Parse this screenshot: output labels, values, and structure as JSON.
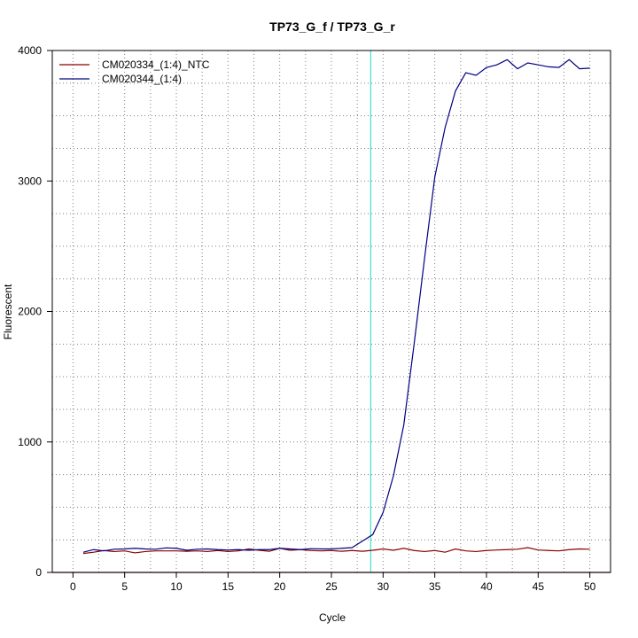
{
  "chart_data": {
    "type": "line",
    "title": "TP73_G_f / TP73_G_r",
    "xlabel": "Cycle",
    "ylabel": "Fluorescent",
    "xlim": [
      -2,
      52
    ],
    "ylim": [
      0,
      4000
    ],
    "x_ticks": [
      0,
      5,
      10,
      15,
      20,
      25,
      30,
      35,
      40,
      45,
      50
    ],
    "y_ticks": [
      0,
      1000,
      2000,
      3000,
      4000
    ],
    "grid": true,
    "legend_position": "top-left",
    "threshold_cycle": 28.8,
    "threshold_color": "#40e0d0",
    "baseline_color": "#8b0000",
    "series": [
      {
        "name": "CM020334_(1:4)_NTC",
        "color": "#8b0000",
        "x": [
          1,
          2,
          3,
          4,
          5,
          6,
          7,
          8,
          9,
          10,
          11,
          12,
          13,
          14,
          15,
          16,
          17,
          18,
          19,
          20,
          21,
          22,
          23,
          24,
          25,
          26,
          27,
          28,
          29,
          30,
          31,
          32,
          33,
          34,
          35,
          36,
          37,
          38,
          39,
          40,
          41,
          42,
          43,
          44,
          45,
          46,
          47,
          48,
          49,
          50
        ],
        "values": [
          145,
          155,
          168,
          160,
          165,
          150,
          160,
          165,
          165,
          165,
          162,
          165,
          160,
          168,
          160,
          165,
          180,
          170,
          162,
          185,
          170,
          175,
          168,
          165,
          168,
          162,
          168,
          162,
          170,
          180,
          170,
          185,
          168,
          160,
          168,
          155,
          180,
          165,
          160,
          168,
          172,
          175,
          178,
          190,
          172,
          168,
          165,
          175,
          180,
          178
        ]
      },
      {
        "name": "CM020344_(1:4)",
        "color": "#000080",
        "x": [
          1,
          2,
          3,
          4,
          5,
          6,
          7,
          8,
          9,
          10,
          11,
          12,
          13,
          14,
          15,
          16,
          17,
          18,
          19,
          20,
          21,
          22,
          23,
          24,
          25,
          26,
          27,
          28,
          29,
          30,
          31,
          32,
          33,
          34,
          35,
          36,
          37,
          38,
          39,
          40,
          41,
          42,
          43,
          44,
          45,
          46,
          47,
          48,
          49,
          50
        ],
        "values": [
          155,
          175,
          165,
          178,
          180,
          185,
          180,
          178,
          188,
          185,
          170,
          178,
          180,
          175,
          172,
          175,
          170,
          175,
          175,
          185,
          180,
          175,
          182,
          180,
          180,
          185,
          190,
          240,
          290,
          460,
          740,
          1130,
          1750,
          2400,
          3030,
          3410,
          3690,
          3830,
          3810,
          3870,
          3890,
          3930,
          3860,
          3905,
          3890,
          3875,
          3870,
          3930,
          3860,
          3865
        ]
      }
    ]
  }
}
